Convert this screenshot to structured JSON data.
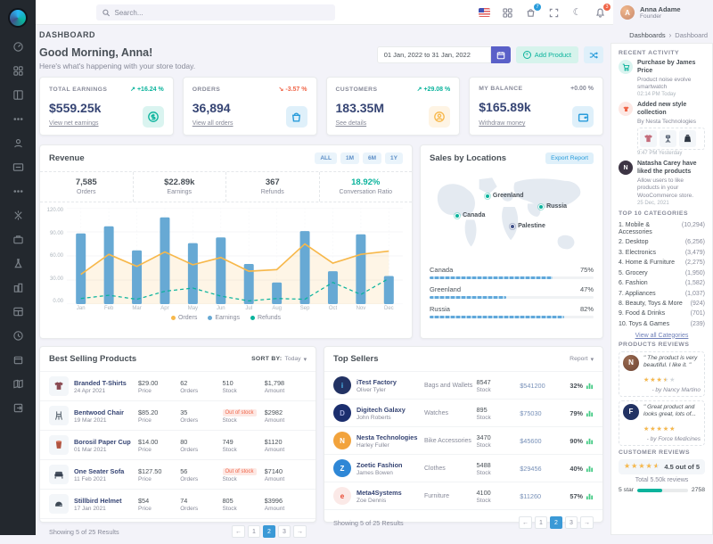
{
  "colors": {
    "primary_indigo": "#5a60c8",
    "success": "#0ab39c",
    "danger": "#f06548",
    "warning": "#f7b84b",
    "info": "#299cdb",
    "pagination_active": "#3b99d6",
    "chart_bar": "#67a9d4",
    "chart_orders": "#f7b84b",
    "chart_refunds": "#0ab39c",
    "sidebar_bg": "#23282e",
    "map_marker": "#0ab39c",
    "map_marker_dark": "#405189"
  },
  "sidebar": {
    "icons": [
      "dashboards",
      "apps",
      "layouts",
      "pages",
      "user",
      "id-card",
      "more",
      "widgets",
      "briefcase",
      "lab",
      "buildings",
      "tables",
      "clock",
      "box",
      "maps",
      "logout"
    ]
  },
  "header": {
    "search_placeholder": "Search...",
    "cart_badge": "7",
    "bell_badge": "3",
    "user": {
      "name": "Anna Adame",
      "role": "Founder",
      "initial": "A"
    }
  },
  "page": {
    "title": "DASHBOARD",
    "breadcrumb": [
      "Dashboards",
      "Dashboard"
    ]
  },
  "greeting": {
    "title": "Good Morning, Anna!",
    "subtitle": "Here's what's happening with your store today."
  },
  "controls": {
    "date_range": "01 Jan, 2022 to 31 Jan, 2022",
    "add_product": "Add Product"
  },
  "stats": [
    {
      "label": "TOTAL EARNINGS",
      "delta": "+16.24 %",
      "dir": "up",
      "value": "$559.25k",
      "link": "View net earnings",
      "icon": "dollar-circle-icon"
    },
    {
      "label": "ORDERS",
      "delta": "-3.57 %",
      "dir": "down",
      "value": "36,894",
      "link": "View all orders",
      "icon": "shopping-bag-icon"
    },
    {
      "label": "CUSTOMERS",
      "delta": "+29.08 %",
      "dir": "up",
      "value": "183.35M",
      "link": "See details",
      "icon": "user-circle-icon"
    },
    {
      "label": "MY BALANCE",
      "delta": "+0.00 %",
      "dir": "flat",
      "value": "$165.89k",
      "link": "Withdraw money",
      "icon": "wallet-icon"
    }
  ],
  "revenue": {
    "title": "Revenue",
    "range_buttons": [
      "ALL",
      "1M",
      "6M",
      "1Y"
    ],
    "stats": [
      {
        "value": "7,585",
        "label": "Orders"
      },
      {
        "value": "$22.89k",
        "label": "Earnings"
      },
      {
        "value": "367",
        "label": "Refunds"
      },
      {
        "value": "18.92%",
        "label": "Conversation Ratio"
      }
    ]
  },
  "chart_data": {
    "type": "bar+line",
    "title": "Revenue",
    "categories": [
      "Jan",
      "Feb",
      "Mar",
      "Apr",
      "May",
      "Jun",
      "Jul",
      "Aug",
      "Sep",
      "Oct",
      "Nov",
      "Dec"
    ],
    "series": [
      {
        "name": "Orders",
        "type": "area-line",
        "values": [
          37,
          62,
          47,
          65,
          49,
          58,
          41,
          43,
          75,
          51,
          62,
          66
        ]
      },
      {
        "name": "Earnings",
        "type": "bar",
        "values": [
          88,
          97,
          67,
          108,
          76,
          83,
          50,
          27,
          91,
          41,
          87,
          35
        ]
      },
      {
        "name": "Refunds",
        "type": "dashed-line",
        "values": [
          7,
          11,
          6,
          16,
          20,
          10,
          4,
          7,
          6,
          27,
          12,
          32
        ]
      }
    ],
    "ymax": 120,
    "yticks": [
      "120.00",
      "90.00",
      "60.00",
      "30.00",
      "0.00"
    ],
    "legend_position": "bottom",
    "grid": true
  },
  "locations": {
    "title": "Sales by Locations",
    "export_label": "Export Report",
    "markers": [
      {
        "name": "Greenland"
      },
      {
        "name": "Canada"
      },
      {
        "name": "Russia"
      },
      {
        "name": "Palestine"
      }
    ],
    "rows": [
      {
        "name": "Canada",
        "pct_label": "75%",
        "pct": 75
      },
      {
        "name": "Greenland",
        "pct_label": "47%",
        "pct": 47
      },
      {
        "name": "Russia",
        "pct_label": "82%",
        "pct": 82
      }
    ]
  },
  "best_selling": {
    "title": "Best Selling Products",
    "sort_label": "SORT BY:",
    "sort_value": "Today",
    "col_labels": [
      "Price",
      "Orders",
      "Stock",
      "Amount"
    ],
    "rows": [
      {
        "name": "Branded T-Shirts",
        "date": "24 Apr 2021",
        "price": "$29.00",
        "orders": "62",
        "stock": "510",
        "amount": "$1,798",
        "oos": false
      },
      {
        "name": "Bentwood Chair",
        "date": "19 Mar 2021",
        "price": "$85.20",
        "orders": "35",
        "stock": "Out of stock",
        "amount": "$2982",
        "oos": true
      },
      {
        "name": "Borosil Paper Cup",
        "date": "01 Mar 2021",
        "price": "$14.00",
        "orders": "80",
        "stock": "749",
        "amount": "$1120",
        "oos": false
      },
      {
        "name": "One Seater Sofa",
        "date": "11 Feb 2021",
        "price": "$127.50",
        "orders": "56",
        "stock": "Out of stock",
        "amount": "$7140",
        "oos": true
      },
      {
        "name": "Stillbird Helmet",
        "date": "17 Jan 2021",
        "price": "$54",
        "orders": "74",
        "stock": "805",
        "amount": "$3996",
        "oos": false
      }
    ],
    "footer": "Showing 5 of 25 Results",
    "pagination": [
      "←",
      "1",
      "2",
      "3",
      "→"
    ],
    "active_page": "2"
  },
  "top_sellers": {
    "title": "Top Sellers",
    "report_label": "Report",
    "stock_label": "Stock",
    "rows": [
      {
        "company": "iTest Factory",
        "owner": "Oliver Tyler",
        "category": "Bags and Wallets",
        "stock": "8547",
        "amount": "$541200",
        "pct": "32%",
        "logo_initial": "i"
      },
      {
        "company": "Digitech Galaxy",
        "owner": "John Roberts",
        "category": "Watches",
        "stock": "895",
        "amount": "$75030",
        "pct": "79%",
        "logo_initial": "D"
      },
      {
        "company": "Nesta Technologies",
        "owner": "Harley Fuller",
        "category": "Bike Accessories",
        "stock": "3470",
        "amount": "$45600",
        "pct": "90%",
        "logo_initial": "N"
      },
      {
        "company": "Zoetic Fashion",
        "owner": "James Bowen",
        "category": "Clothes",
        "stock": "5488",
        "amount": "$29456",
        "pct": "40%",
        "logo_initial": "Z"
      },
      {
        "company": "Meta4Systems",
        "owner": "Zoe Dennis",
        "category": "Furniture",
        "stock": "4100",
        "amount": "$11260",
        "pct": "57%",
        "logo_initial": "e"
      }
    ],
    "footer": "Showing 5 of 25 Results",
    "pagination": [
      "←",
      "1",
      "2",
      "3",
      "→"
    ],
    "active_page": "2"
  },
  "activity": {
    "title": "RECENT ACTIVITY",
    "items": [
      {
        "title": "Purchase by James Price",
        "desc": "Product noise evolve smartwatch",
        "time": "02:14 PM Today"
      },
      {
        "title": "Added new style collection",
        "desc": "By Nesta Technologies",
        "time": "9:47 PM Yesterday"
      },
      {
        "title": "Natasha Carey have liked the products",
        "desc": "Allow users to like products in your WooCommerce store.",
        "time": "25 Dec, 2021",
        "avatar_initial": "N"
      }
    ]
  },
  "categories": {
    "title": "TOP 10 CATEGORIES",
    "items": [
      {
        "name": "1. Mobile & Accessories",
        "count": "(10,294)"
      },
      {
        "name": "2. Desktop",
        "count": "(6,256)"
      },
      {
        "name": "3. Electronics",
        "count": "(3,479)"
      },
      {
        "name": "4. Home & Furniture",
        "count": "(2,275)"
      },
      {
        "name": "5. Grocery",
        "count": "(1,950)"
      },
      {
        "name": "6. Fashion",
        "count": "(1,582)"
      },
      {
        "name": "7. Appliances",
        "count": "(1,037)"
      },
      {
        "name": "8. Beauty, Toys & More",
        "count": "(924)"
      },
      {
        "name": "9. Food & Drinks",
        "count": "(701)"
      },
      {
        "name": "10. Toys & Games",
        "count": "(239)"
      }
    ],
    "view_all": "View all Categories"
  },
  "product_reviews": {
    "title": "PRODUCTS REVIEWS",
    "items": [
      {
        "quote": "\" The product is very beautiful. I like it. \"",
        "stars_pct": 70,
        "by": "- by Nancy Martino",
        "avatar_initial": "N"
      },
      {
        "quote": "\" Great product and looks great, lots of...",
        "stars_pct": 100,
        "by": "- by Force Medicines",
        "avatar_initial": "F"
      }
    ]
  },
  "customer_reviews": {
    "title": "CUSTOMER REVIEWS",
    "rating": "4.5 out of 5",
    "rating_pct": 90,
    "total": "Total 5.50k reviews",
    "first_row": {
      "label": "5 star",
      "value": "2758",
      "pct": 50
    }
  }
}
